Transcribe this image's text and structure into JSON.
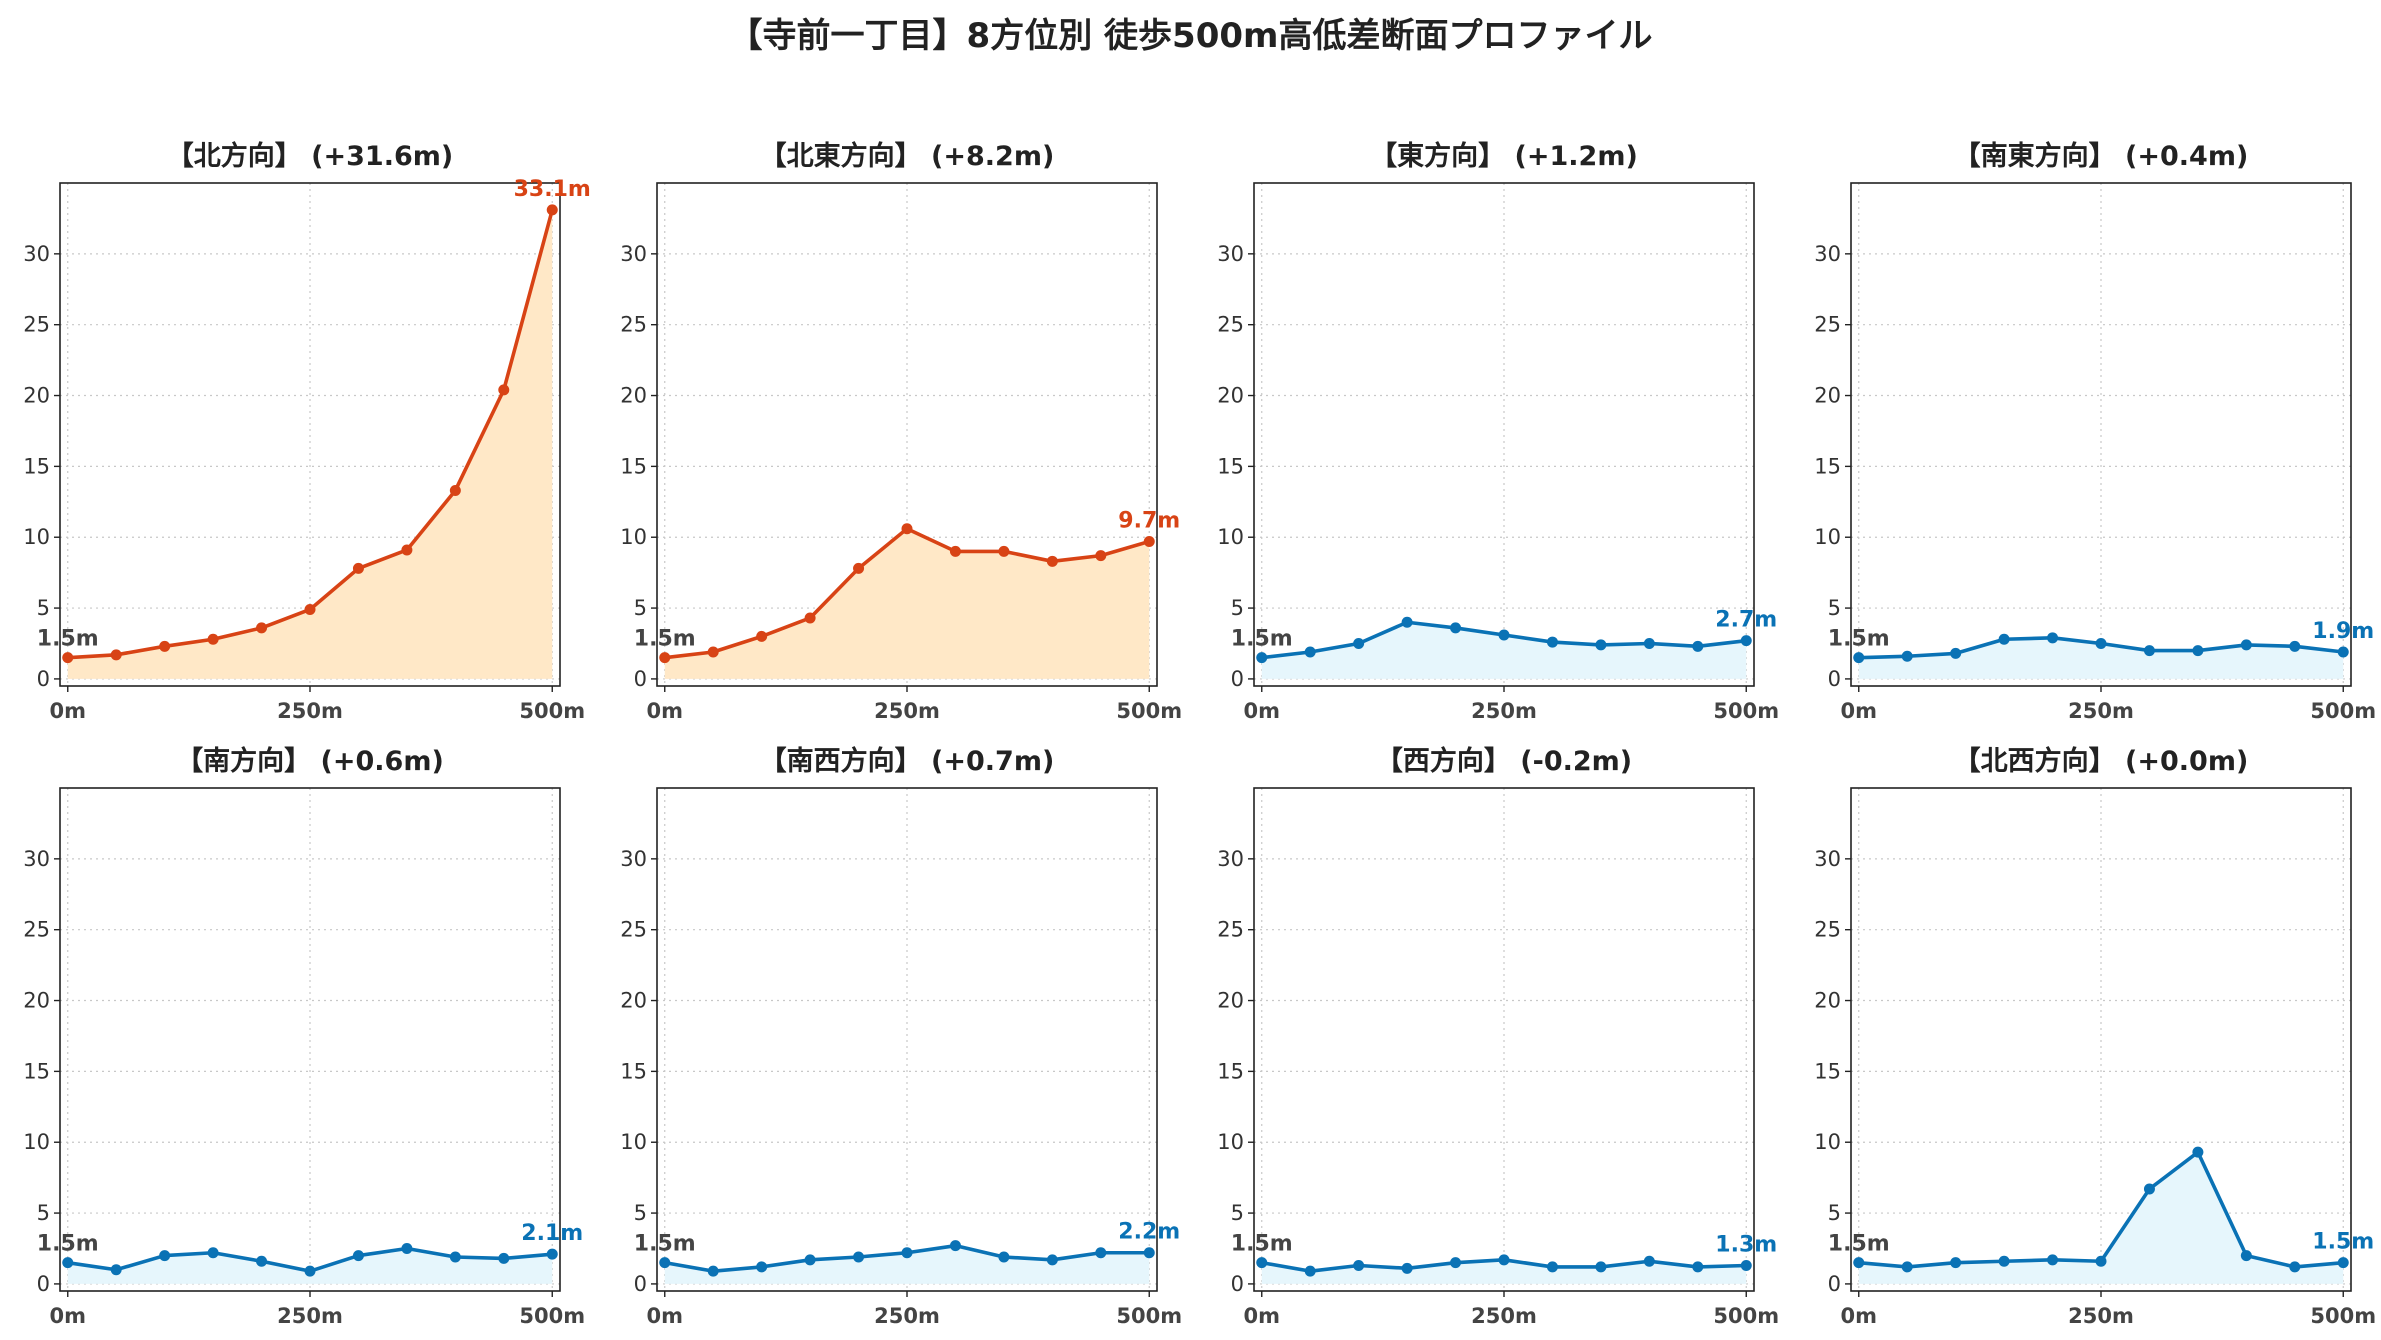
{
  "title": "【寺前一丁目】8方位別 徒歩500m高低差断面プロファイル",
  "colors": {
    "up_line": "#d84315",
    "up_fill": "#ffe8c7",
    "flat_line": "#0a72b5",
    "flat_fill": "#e6f6fc",
    "start_label": "#444444"
  },
  "chart_data": [
    {
      "type": "area",
      "title": "【北方向】 (+31.6m)",
      "trend": "up",
      "x": [
        0,
        50,
        100,
        150,
        200,
        250,
        300,
        350,
        400,
        450,
        500
      ],
      "y": [
        1.5,
        1.7,
        2.3,
        2.8,
        3.6,
        4.9,
        7.8,
        9.1,
        13.3,
        20.4,
        33.1
      ],
      "start_label": "1.5m",
      "end_label": "33.1m",
      "xticks": [
        "0m",
        "250m",
        "500m"
      ],
      "yticks": [
        0,
        5,
        10,
        15,
        20,
        25,
        30
      ],
      "ylim": [
        -0.5,
        35
      ],
      "xlim": [
        -8,
        508
      ],
      "grid": true
    },
    {
      "type": "area",
      "title": "【北東方向】 (+8.2m)",
      "trend": "up",
      "x": [
        0,
        50,
        100,
        150,
        200,
        250,
        300,
        350,
        400,
        450,
        500
      ],
      "y": [
        1.5,
        1.9,
        3.0,
        4.3,
        7.8,
        10.6,
        9.0,
        9.0,
        8.3,
        8.7,
        9.7
      ],
      "start_label": "1.5m",
      "end_label": "9.7m",
      "xticks": [
        "0m",
        "250m",
        "500m"
      ],
      "yticks": [
        0,
        5,
        10,
        15,
        20,
        25,
        30
      ],
      "ylim": [
        -0.5,
        35
      ],
      "xlim": [
        -8,
        508
      ],
      "grid": true
    },
    {
      "type": "area",
      "title": "【東方向】 (+1.2m)",
      "trend": "flat",
      "x": [
        0,
        50,
        100,
        150,
        200,
        250,
        300,
        350,
        400,
        450,
        500
      ],
      "y": [
        1.5,
        1.9,
        2.5,
        4.0,
        3.6,
        3.1,
        2.6,
        2.4,
        2.5,
        2.3,
        2.7
      ],
      "start_label": "1.5m",
      "end_label": "2.7m",
      "xticks": [
        "0m",
        "250m",
        "500m"
      ],
      "yticks": [
        0,
        5,
        10,
        15,
        20,
        25,
        30
      ],
      "ylim": [
        -0.5,
        35
      ],
      "xlim": [
        -8,
        508
      ],
      "grid": true
    },
    {
      "type": "area",
      "title": "【南東方向】 (+0.4m)",
      "trend": "flat",
      "x": [
        0,
        50,
        100,
        150,
        200,
        250,
        300,
        350,
        400,
        450,
        500
      ],
      "y": [
        1.5,
        1.6,
        1.8,
        2.8,
        2.9,
        2.5,
        2.0,
        2.0,
        2.4,
        2.3,
        1.9
      ],
      "start_label": "1.5m",
      "end_label": "1.9m",
      "xticks": [
        "0m",
        "250m",
        "500m"
      ],
      "yticks": [
        0,
        5,
        10,
        15,
        20,
        25,
        30
      ],
      "ylim": [
        -0.5,
        35
      ],
      "xlim": [
        -8,
        508
      ],
      "grid": true
    },
    {
      "type": "area",
      "title": "【南方向】 (+0.6m)",
      "trend": "flat",
      "x": [
        0,
        50,
        100,
        150,
        200,
        250,
        300,
        350,
        400,
        450,
        500
      ],
      "y": [
        1.5,
        1.0,
        2.0,
        2.2,
        1.6,
        0.9,
        2.0,
        2.5,
        1.9,
        1.8,
        2.1
      ],
      "start_label": "1.5m",
      "end_label": "2.1m",
      "xticks": [
        "0m",
        "250m",
        "500m"
      ],
      "yticks": [
        0,
        5,
        10,
        15,
        20,
        25,
        30
      ],
      "ylim": [
        -0.5,
        35
      ],
      "xlim": [
        -8,
        508
      ],
      "grid": true
    },
    {
      "type": "area",
      "title": "【南西方向】 (+0.7m)",
      "trend": "flat",
      "x": [
        0,
        50,
        100,
        150,
        200,
        250,
        300,
        350,
        400,
        450,
        500
      ],
      "y": [
        1.5,
        0.9,
        1.2,
        1.7,
        1.9,
        2.2,
        2.7,
        1.9,
        1.7,
        2.2,
        2.2
      ],
      "start_label": "1.5m",
      "end_label": "2.2m",
      "xticks": [
        "0m",
        "250m",
        "500m"
      ],
      "yticks": [
        0,
        5,
        10,
        15,
        20,
        25,
        30
      ],
      "ylim": [
        -0.5,
        35
      ],
      "xlim": [
        -8,
        508
      ],
      "grid": true
    },
    {
      "type": "area",
      "title": "【西方向】 (-0.2m)",
      "trend": "flat",
      "x": [
        0,
        50,
        100,
        150,
        200,
        250,
        300,
        350,
        400,
        450,
        500
      ],
      "y": [
        1.5,
        0.9,
        1.3,
        1.1,
        1.5,
        1.7,
        1.2,
        1.2,
        1.6,
        1.2,
        1.3
      ],
      "start_label": "1.5m",
      "end_label": "1.3m",
      "xticks": [
        "0m",
        "250m",
        "500m"
      ],
      "yticks": [
        0,
        5,
        10,
        15,
        20,
        25,
        30
      ],
      "ylim": [
        -0.5,
        35
      ],
      "xlim": [
        -8,
        508
      ],
      "grid": true
    },
    {
      "type": "area",
      "title": "【北西方向】 (+0.0m)",
      "trend": "flat",
      "x": [
        0,
        50,
        100,
        150,
        200,
        250,
        300,
        350,
        400,
        450,
        500
      ],
      "y": [
        1.5,
        1.2,
        1.5,
        1.6,
        1.7,
        1.6,
        6.7,
        9.3,
        2.0,
        1.2,
        1.5
      ],
      "start_label": "1.5m",
      "end_label": "1.5m",
      "xticks": [
        "0m",
        "250m",
        "500m"
      ],
      "yticks": [
        0,
        5,
        10,
        15,
        20,
        25,
        30
      ],
      "ylim": [
        -0.5,
        35
      ],
      "xlim": [
        -8,
        508
      ],
      "grid": true
    }
  ]
}
